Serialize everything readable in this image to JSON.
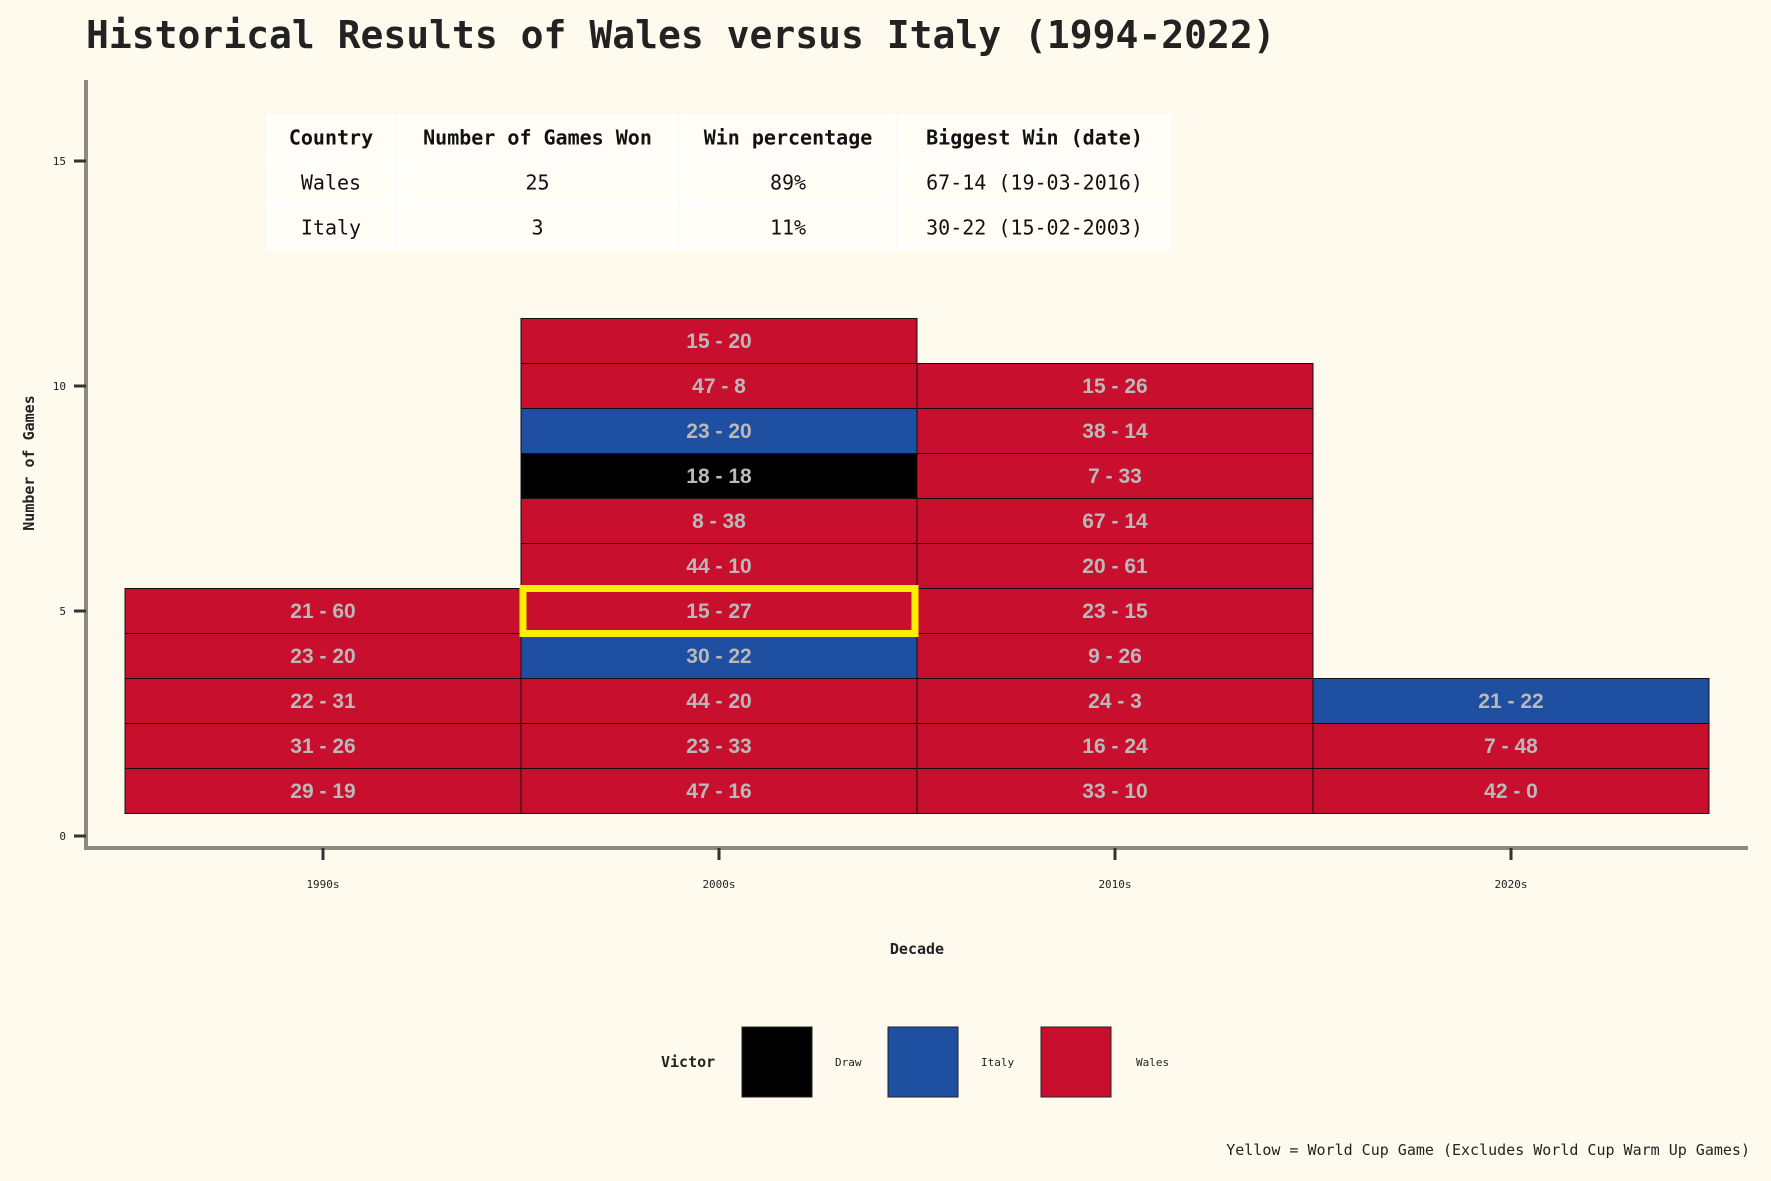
{
  "chart_data": {
    "type": "heatmap",
    "title": "Historical Results of Wales versus Italy (1994-2022)",
    "xlabel": "Decade",
    "ylabel": "Number of Games",
    "categories": [
      "1990s",
      "2000s",
      "2010s",
      "2020s"
    ],
    "yticks": [
      0,
      5,
      10,
      15
    ],
    "ylim": [
      0,
      17
    ],
    "columns": [
      {
        "decade": "1990s",
        "games": [
          {
            "score": "29 - 19",
            "victor": "Wales"
          },
          {
            "score": "31 - 26",
            "victor": "Wales"
          },
          {
            "score": "22 - 31",
            "victor": "Wales"
          },
          {
            "score": "23 - 20",
            "victor": "Wales"
          },
          {
            "score": "21 - 60",
            "victor": "Wales"
          }
        ]
      },
      {
        "decade": "2000s",
        "games": [
          {
            "score": "47 - 16",
            "victor": "Wales"
          },
          {
            "score": "23 - 33",
            "victor": "Wales"
          },
          {
            "score": "44 - 20",
            "victor": "Wales"
          },
          {
            "score": "30 - 22",
            "victor": "Italy"
          },
          {
            "score": "15 - 27",
            "victor": "Wales",
            "world_cup": true
          },
          {
            "score": "44 - 10",
            "victor": "Wales"
          },
          {
            "score": "8 - 38",
            "victor": "Wales"
          },
          {
            "score": "18 - 18",
            "victor": "Draw"
          },
          {
            "score": "23 - 20",
            "victor": "Italy"
          },
          {
            "score": "47 - 8",
            "victor": "Wales"
          },
          {
            "score": "15 - 20",
            "victor": "Wales"
          }
        ]
      },
      {
        "decade": "2010s",
        "games": [
          {
            "score": "33 - 10",
            "victor": "Wales"
          },
          {
            "score": "16 - 24",
            "victor": "Wales"
          },
          {
            "score": "24 - 3",
            "victor": "Wales"
          },
          {
            "score": "9 - 26",
            "victor": "Wales"
          },
          {
            "score": "23 - 15",
            "victor": "Wales"
          },
          {
            "score": "20 - 61",
            "victor": "Wales"
          },
          {
            "score": "67 - 14",
            "victor": "Wales"
          },
          {
            "score": "7 - 33",
            "victor": "Wales"
          },
          {
            "score": "38 - 14",
            "victor": "Wales"
          },
          {
            "score": "15 - 26",
            "victor": "Wales"
          }
        ]
      },
      {
        "decade": "2020s",
        "games": [
          {
            "score": "42 - 0",
            "victor": "Wales"
          },
          {
            "score": "7 - 48",
            "victor": "Wales"
          },
          {
            "score": "21 - 22",
            "victor": "Italy"
          }
        ]
      }
    ],
    "legend": {
      "title": "Victor",
      "placement": "bottom",
      "entries": [
        {
          "label": "Draw",
          "color": "#000000"
        },
        {
          "label": "Italy",
          "color": "#1f4fa0"
        },
        {
          "label": "Wales",
          "color": "#c8102e"
        }
      ]
    },
    "highlight_color": "#ffee00",
    "caption": "Yellow = World Cup Game (Excludes World Cup Warm Up Games)",
    "summary_table": {
      "headers": [
        "Country",
        "Number of Games Won",
        "Win percentage",
        "Biggest Win (date)"
      ],
      "rows": [
        [
          "Wales",
          "25",
          "89%",
          "67-14 (19-03-2016)"
        ],
        [
          "Italy",
          "3",
          "11%",
          "30-22 (15-02-2003)"
        ]
      ]
    }
  }
}
